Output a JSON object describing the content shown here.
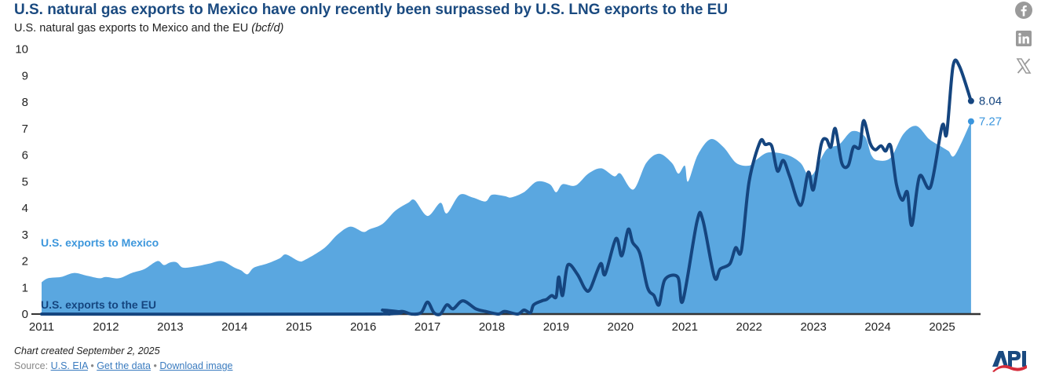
{
  "header": {
    "title": "U.S. natural gas exports to Mexico have only recently been surpassed by U.S. LNG exports to the EU",
    "subtitle": "U.S. natural gas exports to Mexico and the EU",
    "subtitle_unit": "(bcf/d)"
  },
  "footer": {
    "created": "Chart created September 2, 2025",
    "source_label": "Source:",
    "source_link": "U.S. EIA",
    "separator": "•",
    "get_data": "Get the data",
    "download": "Download image"
  },
  "social": {
    "icons": [
      "facebook-icon",
      "linkedin-icon",
      "x-icon"
    ]
  },
  "logo": {
    "text": "API"
  },
  "colors": {
    "mexico": "#5aa7e0",
    "eu": "#15457f",
    "axis": "#333333",
    "title": "#1a4a80"
  },
  "chart_data": {
    "type": "area",
    "title": "U.S. natural gas exports to Mexico have only recently been surpassed by U.S. LNG exports to the EU",
    "ylabel": "bcf/d",
    "xlabel": "",
    "ylim": [
      0,
      10
    ],
    "xlim": [
      2011,
      2025.5
    ],
    "yticks": [
      "0",
      "1",
      "2",
      "3",
      "4",
      "5",
      "6",
      "7",
      "8",
      "9",
      "10"
    ],
    "xticks": [
      "2011",
      "2012",
      "2013",
      "2014",
      "2015",
      "2016",
      "2017",
      "2018",
      "2019",
      "2020",
      "2021",
      "2022",
      "2023",
      "2024",
      "2025"
    ],
    "grid": false,
    "series": [
      {
        "name": "U.S. exports to Mexico",
        "kind": "area",
        "end_label": "7.27",
        "points": [
          [
            2011.0,
            1.2
          ],
          [
            2011.1,
            1.35
          ],
          [
            2011.3,
            1.4
          ],
          [
            2011.5,
            1.55
          ],
          [
            2011.7,
            1.45
          ],
          [
            2011.9,
            1.35
          ],
          [
            2012.0,
            1.4
          ],
          [
            2012.2,
            1.35
          ],
          [
            2012.4,
            1.55
          ],
          [
            2012.6,
            1.7
          ],
          [
            2012.8,
            2.0
          ],
          [
            2012.9,
            1.85
          ],
          [
            2013.0,
            1.95
          ],
          [
            2013.1,
            1.95
          ],
          [
            2013.2,
            1.75
          ],
          [
            2013.4,
            1.8
          ],
          [
            2013.6,
            1.9
          ],
          [
            2013.8,
            2.0
          ],
          [
            2014.0,
            1.75
          ],
          [
            2014.1,
            1.65
          ],
          [
            2014.2,
            1.5
          ],
          [
            2014.3,
            1.75
          ],
          [
            2014.5,
            1.9
          ],
          [
            2014.7,
            2.1
          ],
          [
            2014.8,
            2.25
          ],
          [
            2015.0,
            2.0
          ],
          [
            2015.1,
            2.05
          ],
          [
            2015.4,
            2.5
          ],
          [
            2015.6,
            3.0
          ],
          [
            2015.8,
            3.3
          ],
          [
            2016.0,
            3.1
          ],
          [
            2016.1,
            3.2
          ],
          [
            2016.3,
            3.4
          ],
          [
            2016.5,
            3.9
          ],
          [
            2016.7,
            4.2
          ],
          [
            2016.8,
            4.3
          ],
          [
            2017.0,
            3.7
          ],
          [
            2017.2,
            4.2
          ],
          [
            2017.3,
            3.8
          ],
          [
            2017.5,
            4.5
          ],
          [
            2017.7,
            4.4
          ],
          [
            2017.9,
            4.25
          ],
          [
            2018.0,
            4.5
          ],
          [
            2018.2,
            4.45
          ],
          [
            2018.3,
            4.4
          ],
          [
            2018.5,
            4.6
          ],
          [
            2018.7,
            5.0
          ],
          [
            2018.9,
            4.9
          ],
          [
            2019.0,
            4.6
          ],
          [
            2019.1,
            4.9
          ],
          [
            2019.3,
            4.85
          ],
          [
            2019.5,
            5.3
          ],
          [
            2019.7,
            5.5
          ],
          [
            2019.9,
            5.2
          ],
          [
            2020.0,
            5.3
          ],
          [
            2020.2,
            4.7
          ],
          [
            2020.4,
            5.7
          ],
          [
            2020.6,
            6.05
          ],
          [
            2020.8,
            5.7
          ],
          [
            2020.9,
            5.3
          ],
          [
            2021.0,
            5.6
          ],
          [
            2021.05,
            5.0
          ],
          [
            2021.2,
            6.0
          ],
          [
            2021.4,
            6.6
          ],
          [
            2021.6,
            6.3
          ],
          [
            2021.8,
            5.7
          ],
          [
            2022.0,
            5.6
          ],
          [
            2022.1,
            5.8
          ],
          [
            2022.3,
            6.1
          ],
          [
            2022.6,
            6.0
          ],
          [
            2022.8,
            5.7
          ],
          [
            2022.9,
            5.3
          ],
          [
            2023.0,
            5.3
          ],
          [
            2023.2,
            6.2
          ],
          [
            2023.4,
            6.4
          ],
          [
            2023.6,
            6.9
          ],
          [
            2023.8,
            6.7
          ],
          [
            2023.9,
            6.0
          ],
          [
            2024.0,
            5.8
          ],
          [
            2024.2,
            5.9
          ],
          [
            2024.4,
            6.8
          ],
          [
            2024.6,
            7.1
          ],
          [
            2024.8,
            6.6
          ],
          [
            2025.0,
            6.3
          ],
          [
            2025.1,
            6.15
          ],
          [
            2025.2,
            6.0
          ],
          [
            2025.45,
            7.27
          ]
        ]
      },
      {
        "name": "U.S. exports to the EU",
        "kind": "line",
        "end_label": "8.04",
        "points": [
          [
            2011.0,
            0.0
          ],
          [
            2016.2,
            0.0
          ],
          [
            2016.3,
            0.15
          ],
          [
            2016.4,
            0.0
          ],
          [
            2016.6,
            0.1
          ],
          [
            2016.75,
            0.0
          ],
          [
            2016.9,
            0.05
          ],
          [
            2017.0,
            0.45
          ],
          [
            2017.1,
            0.05
          ],
          [
            2017.2,
            0.0
          ],
          [
            2017.3,
            0.35
          ],
          [
            2017.4,
            0.2
          ],
          [
            2017.55,
            0.5
          ],
          [
            2017.75,
            0.2
          ],
          [
            2017.9,
            0.1
          ],
          [
            2018.1,
            0.0
          ],
          [
            2018.2,
            0.1
          ],
          [
            2018.4,
            0.0
          ],
          [
            2018.5,
            0.15
          ],
          [
            2018.6,
            0.05
          ],
          [
            2018.65,
            0.35
          ],
          [
            2018.78,
            0.5
          ],
          [
            2018.85,
            0.55
          ],
          [
            2018.93,
            0.7
          ],
          [
            2019.0,
            0.65
          ],
          [
            2019.04,
            1.4
          ],
          [
            2019.1,
            0.7
          ],
          [
            2019.18,
            1.85
          ],
          [
            2019.33,
            1.5
          ],
          [
            2019.45,
            0.95
          ],
          [
            2019.53,
            0.95
          ],
          [
            2019.69,
            1.9
          ],
          [
            2019.76,
            1.5
          ],
          [
            2019.93,
            2.85
          ],
          [
            2020.02,
            2.2
          ],
          [
            2020.12,
            3.2
          ],
          [
            2020.19,
            2.7
          ],
          [
            2020.3,
            2.3
          ],
          [
            2020.42,
            1.0
          ],
          [
            2020.52,
            0.7
          ],
          [
            2020.6,
            0.35
          ],
          [
            2020.69,
            1.3
          ],
          [
            2020.89,
            1.4
          ],
          [
            2020.97,
            0.5
          ],
          [
            2021.19,
            3.5
          ],
          [
            2021.28,
            3.55
          ],
          [
            2021.46,
            1.4
          ],
          [
            2021.55,
            1.7
          ],
          [
            2021.7,
            1.9
          ],
          [
            2021.79,
            2.5
          ],
          [
            2021.88,
            2.4
          ],
          [
            2022.0,
            5.0
          ],
          [
            2022.17,
            6.5
          ],
          [
            2022.25,
            6.4
          ],
          [
            2022.35,
            6.35
          ],
          [
            2022.44,
            5.4
          ],
          [
            2022.53,
            5.8
          ],
          [
            2022.63,
            5.2
          ],
          [
            2022.8,
            4.1
          ],
          [
            2022.92,
            5.35
          ],
          [
            2023.0,
            4.7
          ],
          [
            2023.12,
            6.4
          ],
          [
            2023.2,
            6.6
          ],
          [
            2023.27,
            6.3
          ],
          [
            2023.34,
            7.0
          ],
          [
            2023.44,
            5.7
          ],
          [
            2023.54,
            5.6
          ],
          [
            2023.62,
            6.3
          ],
          [
            2023.72,
            6.3
          ],
          [
            2023.78,
            7.3
          ],
          [
            2023.88,
            6.45
          ],
          [
            2023.96,
            6.2
          ],
          [
            2024.05,
            6.35
          ],
          [
            2024.12,
            6.15
          ],
          [
            2024.2,
            6.35
          ],
          [
            2024.29,
            4.9
          ],
          [
            2024.38,
            4.3
          ],
          [
            2024.46,
            4.6
          ],
          [
            2024.53,
            3.35
          ],
          [
            2024.65,
            5.2
          ],
          [
            2024.82,
            4.8
          ],
          [
            2025.0,
            7.1
          ],
          [
            2025.07,
            6.8
          ],
          [
            2025.17,
            9.35
          ],
          [
            2025.27,
            9.35
          ],
          [
            2025.45,
            8.04
          ]
        ]
      }
    ]
  }
}
